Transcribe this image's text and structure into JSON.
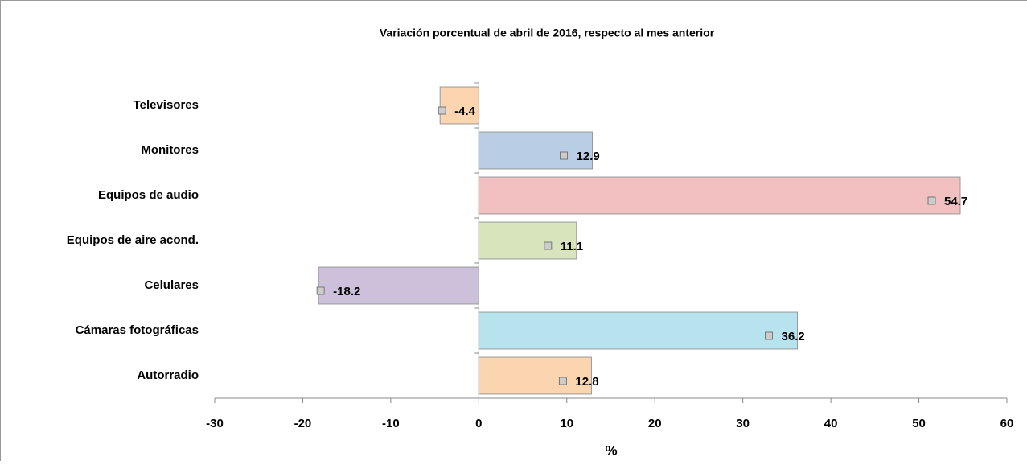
{
  "chart_data": {
    "type": "bar",
    "orientation": "horizontal",
    "title": "Variación porcentual de abril de 2016, respecto al mes anterior",
    "x_label": "%",
    "categories": [
      "Televisores",
      "Monitores",
      "Equipos de audio",
      "Equipos de aire acond.",
      "Celulares",
      "Cámaras fotográficas",
      "Autorradio"
    ],
    "values": [
      -4.4,
      12.9,
      54.7,
      11.1,
      -18.2,
      36.2,
      12.8
    ],
    "colors": [
      "#fbd5b0",
      "#b9cde5",
      "#f2c0c0",
      "#d7e4bc",
      "#ccc0da",
      "#b7e3ee",
      "#fbd5b0"
    ],
    "xlim": [
      -30,
      60
    ],
    "xticks": [
      -30,
      -20,
      -10,
      0,
      10,
      20,
      30,
      40,
      50,
      60
    ]
  }
}
